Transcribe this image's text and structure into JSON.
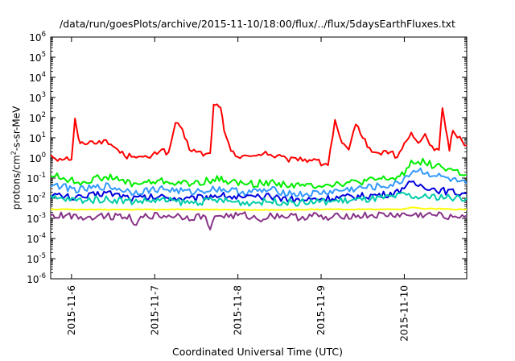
{
  "chart_data": {
    "type": "line",
    "title": "/data/run/goesPlots/archive/2015-11-10/18:00/flux/../flux/5daysEarthFluxes.txt",
    "xlabel": "Coordinated Universal Time (UTC)",
    "ylabel_base": "protons/cm",
    "ylabel_sup": "2",
    "ylabel_rest": "-s-sr-MeV",
    "ylim": [
      1e-06,
      1000000.0
    ],
    "yscale": "log",
    "xlim": [
      "2015-11-05 18:00",
      "2015-11-10 18:00"
    ],
    "grid": false,
    "y_ticks": [
      {
        "base": "10",
        "exp": "-6"
      },
      {
        "base": "10",
        "exp": "-5"
      },
      {
        "base": "10",
        "exp": "-4"
      },
      {
        "base": "10",
        "exp": "-3"
      },
      {
        "base": "10",
        "exp": "-2"
      },
      {
        "base": "10",
        "exp": "-1"
      },
      {
        "base": "10",
        "exp": "0"
      },
      {
        "base": "10",
        "exp": "1"
      },
      {
        "base": "10",
        "exp": "2"
      },
      {
        "base": "10",
        "exp": "3"
      },
      {
        "base": "10",
        "exp": "4"
      },
      {
        "base": "10",
        "exp": "5"
      },
      {
        "base": "10",
        "exp": "6"
      }
    ],
    "x_ticks": [
      "2015-11-6",
      "2015-11-7",
      "2015-11-8",
      "2015-11-9",
      "2015-11-10"
    ],
    "x_tick_hours": [
      6,
      30,
      54,
      78,
      102
    ],
    "x_hours_span": 120,
    "series": [
      {
        "color": "#ff0000",
        "x_hours": [
          0,
          2,
          4,
          6,
          7,
          8,
          9,
          10,
          12,
          14,
          16,
          18,
          20,
          22,
          24,
          26,
          28,
          30,
          32,
          34,
          36,
          38,
          40,
          42,
          44,
          46,
          47,
          48,
          49,
          50,
          52,
          54,
          56,
          58,
          60,
          62,
          64,
          66,
          68,
          70,
          72,
          74,
          76,
          78,
          80,
          82,
          84,
          86,
          88,
          90,
          92,
          94,
          96,
          98,
          100,
          102,
          104,
          106,
          108,
          110,
          112,
          113,
          114,
          115,
          116,
          118,
          120
        ],
        "values": [
          1.5,
          0.9,
          1.0,
          0.9,
          80,
          8,
          5,
          6,
          6,
          7,
          6,
          4,
          2,
          1.2,
          1.5,
          1.0,
          1.0,
          1.5,
          3,
          1.5,
          60,
          20,
          3,
          2,
          1.5,
          1.5,
          400,
          400,
          400,
          20,
          2,
          1.2,
          1.5,
          1.0,
          1.5,
          2,
          1.2,
          1.2,
          0.8,
          0.8,
          1.0,
          0.7,
          1.0,
          0.5,
          0.5,
          60,
          5,
          2,
          60,
          10,
          3,
          1.5,
          2,
          2,
          1.0,
          5,
          15,
          5,
          15,
          3,
          3,
          300,
          20,
          3,
          20,
          10,
          4
        ]
      },
      {
        "color": "#00ee00",
        "x_hours": [
          0,
          8,
          16,
          24,
          32,
          40,
          48,
          56,
          64,
          72,
          80,
          88,
          96,
          100,
          102,
          104,
          106,
          108,
          110,
          112,
          114,
          116,
          118,
          120
        ],
        "values": [
          0.15,
          0.06,
          0.12,
          0.05,
          0.07,
          0.05,
          0.09,
          0.05,
          0.06,
          0.04,
          0.05,
          0.06,
          0.09,
          0.1,
          0.2,
          0.6,
          0.7,
          0.6,
          0.45,
          0.4,
          0.3,
          0.25,
          0.18,
          0.15
        ]
      },
      {
        "color": "#3399ff",
        "x_hours": [
          0,
          8,
          16,
          24,
          32,
          40,
          48,
          56,
          64,
          72,
          80,
          88,
          96,
          100,
          102,
          104,
          106,
          108,
          110,
          112,
          114,
          116,
          118,
          120
        ],
        "values": [
          0.05,
          0.025,
          0.04,
          0.02,
          0.03,
          0.02,
          0.03,
          0.02,
          0.025,
          0.015,
          0.02,
          0.03,
          0.04,
          0.05,
          0.1,
          0.2,
          0.25,
          0.2,
          0.15,
          0.12,
          0.1,
          0.08,
          0.06,
          0.05
        ]
      },
      {
        "color": "#0000dd",
        "x_hours": [
          0,
          8,
          16,
          24,
          32,
          40,
          48,
          56,
          64,
          72,
          80,
          88,
          96,
          100,
          102,
          104,
          106,
          108,
          110,
          112,
          114,
          116,
          118,
          120
        ],
        "values": [
          0.015,
          0.01,
          0.02,
          0.01,
          0.012,
          0.009,
          0.015,
          0.01,
          0.012,
          0.008,
          0.01,
          0.012,
          0.015,
          0.02,
          0.04,
          0.05,
          0.045,
          0.04,
          0.03,
          0.025,
          0.022,
          0.02,
          0.018,
          0.017
        ]
      },
      {
        "color": "#00ccaa",
        "x_hours": [
          0,
          8,
          16,
          24,
          32,
          40,
          48,
          56,
          64,
          72,
          80,
          88,
          96,
          100,
          102,
          104,
          106,
          108,
          110,
          112,
          114,
          116,
          118,
          120
        ],
        "values": [
          0.01,
          0.008,
          0.009,
          0.007,
          0.008,
          0.006,
          0.008,
          0.006,
          0.007,
          0.006,
          0.007,
          0.008,
          0.01,
          0.012,
          0.015,
          0.012,
          0.011,
          0.011,
          0.012,
          0.012,
          0.011,
          0.01,
          0.01,
          0.01
        ]
      },
      {
        "color": "#ffff00",
        "x_hours": [
          0,
          20,
          40,
          60,
          80,
          100,
          102,
          104,
          106,
          108,
          110,
          112,
          114,
          116,
          118,
          120
        ],
        "values": [
          0.0028,
          0.0027,
          0.0028,
          0.0026,
          0.0028,
          0.0028,
          0.003,
          0.0035,
          0.0032,
          0.003,
          0.003,
          0.003,
          0.0029,
          0.0028,
          0.0028,
          0.0028
        ]
      },
      {
        "color": "#883388",
        "x_hours": [
          0,
          6,
          10,
          14,
          18,
          22,
          24,
          28,
          32,
          36,
          40,
          44,
          46,
          48,
          52,
          56,
          60,
          64,
          68,
          72,
          76,
          80,
          84,
          88,
          92,
          96,
          100,
          104,
          108,
          112,
          116,
          120
        ],
        "values": [
          0.0013,
          0.0014,
          0.0011,
          0.0014,
          0.0013,
          0.0014,
          0.0006,
          0.0014,
          0.0013,
          0.0014,
          0.0011,
          0.0013,
          0.0004,
          0.0014,
          0.0013,
          0.0014,
          0.0009,
          0.0014,
          0.0013,
          0.0011,
          0.0014,
          0.0009,
          0.0014,
          0.0013,
          0.0014,
          0.0014,
          0.0015,
          0.0014,
          0.0015,
          0.0014,
          0.0013,
          0.0014
        ]
      }
    ]
  }
}
